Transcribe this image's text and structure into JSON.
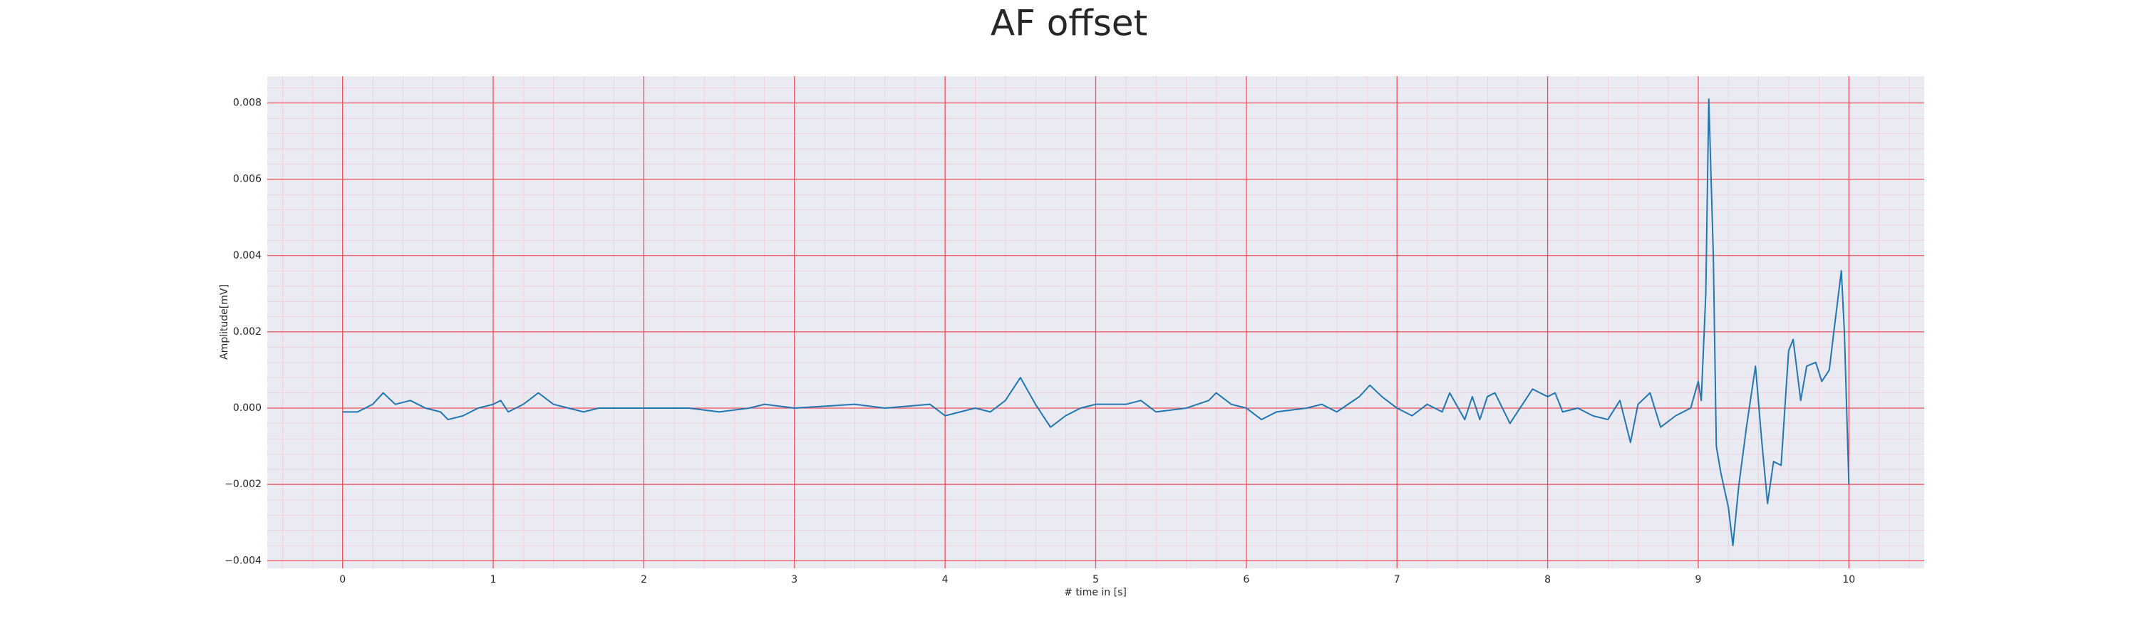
{
  "chart_data": {
    "type": "line",
    "title": "AF offset",
    "x_label": "# time in [s]",
    "y_label": "Amplitude[mV]",
    "xlim": [
      -0.5,
      10.5
    ],
    "xticks": [
      0,
      1,
      2,
      3,
      4,
      5,
      6,
      7,
      8,
      9,
      10
    ],
    "ylim": [
      -0.0042,
      0.0087
    ],
    "yticks": [
      {
        "value": -0.004,
        "label": "−0.004"
      },
      {
        "value": -0.002,
        "label": "−0.002"
      },
      {
        "value": 0,
        "label": "0.000"
      },
      {
        "value": 0.002,
        "label": "0.002"
      },
      {
        "value": 0.004,
        "label": "0.004"
      },
      {
        "value": 0.006,
        "label": "0.006"
      },
      {
        "value": 0.008,
        "label": "0.008"
      }
    ],
    "grid": true,
    "minor_grid": true,
    "series": [
      {
        "color": "#1f77b4",
        "x": [
          0.0,
          0.1,
          0.2,
          0.27,
          0.35,
          0.45,
          0.55,
          0.65,
          0.7,
          0.8,
          0.9,
          1.0,
          1.05,
          1.1,
          1.2,
          1.3,
          1.4,
          1.5,
          1.6,
          1.7,
          2.0,
          2.3,
          2.5,
          2.7,
          2.8,
          3.0,
          3.4,
          3.6,
          3.9,
          4.0,
          4.2,
          4.3,
          4.4,
          4.5,
          4.6,
          4.7,
          4.8,
          4.9,
          5.0,
          5.2,
          5.3,
          5.4,
          5.6,
          5.75,
          5.8,
          5.9,
          6.0,
          6.1,
          6.2,
          6.4,
          6.5,
          6.6,
          6.75,
          6.82,
          6.9,
          7.0,
          7.1,
          7.2,
          7.3,
          7.35,
          7.45,
          7.5,
          7.55,
          7.6,
          7.65,
          7.75,
          7.85,
          7.9,
          8.0,
          8.05,
          8.1,
          8.2,
          8.3,
          8.4,
          8.48,
          8.55,
          8.6,
          8.68,
          8.75,
          8.85,
          8.95,
          9.0,
          9.02,
          9.05,
          9.07,
          9.1,
          9.12,
          9.15,
          9.2,
          9.23,
          9.27,
          9.32,
          9.38,
          9.42,
          9.46,
          9.5,
          9.55,
          9.6,
          9.63,
          9.68,
          9.72,
          9.78,
          9.82,
          9.87,
          9.9,
          9.95,
          9.97,
          10.0
        ],
        "values": [
          -0.0001,
          -0.0001,
          0.0001,
          0.0004,
          0.0001,
          0.0002,
          0.0,
          -0.0001,
          -0.0003,
          -0.0002,
          0.0,
          0.0001,
          0.0002,
          -0.0001,
          0.0001,
          0.0004,
          0.0001,
          0.0,
          -0.0001,
          0.0,
          0.0,
          0.0,
          -0.0001,
          0.0,
          0.0001,
          0.0,
          0.0001,
          0.0,
          0.0001,
          -0.0002,
          0.0,
          -0.0001,
          0.0002,
          0.0008,
          0.0001,
          -0.0005,
          -0.0002,
          0.0,
          0.0001,
          0.0001,
          0.0002,
          -0.0001,
          0.0,
          0.0002,
          0.0004,
          0.0001,
          0.0,
          -0.0003,
          -0.0001,
          0.0,
          0.0001,
          -0.0001,
          0.0003,
          0.0006,
          0.0003,
          0.0,
          -0.0002,
          0.0001,
          -0.0001,
          0.0004,
          -0.0003,
          0.0003,
          -0.0003,
          0.0003,
          0.0004,
          -0.0004,
          0.0002,
          0.0005,
          0.0003,
          0.0004,
          -0.0001,
          0.0,
          -0.0002,
          -0.0003,
          0.0002,
          -0.0009,
          0.0001,
          0.0004,
          -0.0005,
          -0.0002,
          0.0,
          0.0007,
          0.0002,
          0.003,
          0.0081,
          0.004,
          -0.001,
          -0.0017,
          -0.0026,
          -0.0036,
          -0.002,
          -0.0005,
          0.0011,
          -0.0008,
          -0.0025,
          -0.0014,
          -0.0015,
          0.0015,
          0.0018,
          0.0002,
          0.0011,
          0.0012,
          0.0007,
          0.001,
          0.002,
          0.0036,
          0.002,
          -0.002
        ]
      }
    ]
  }
}
